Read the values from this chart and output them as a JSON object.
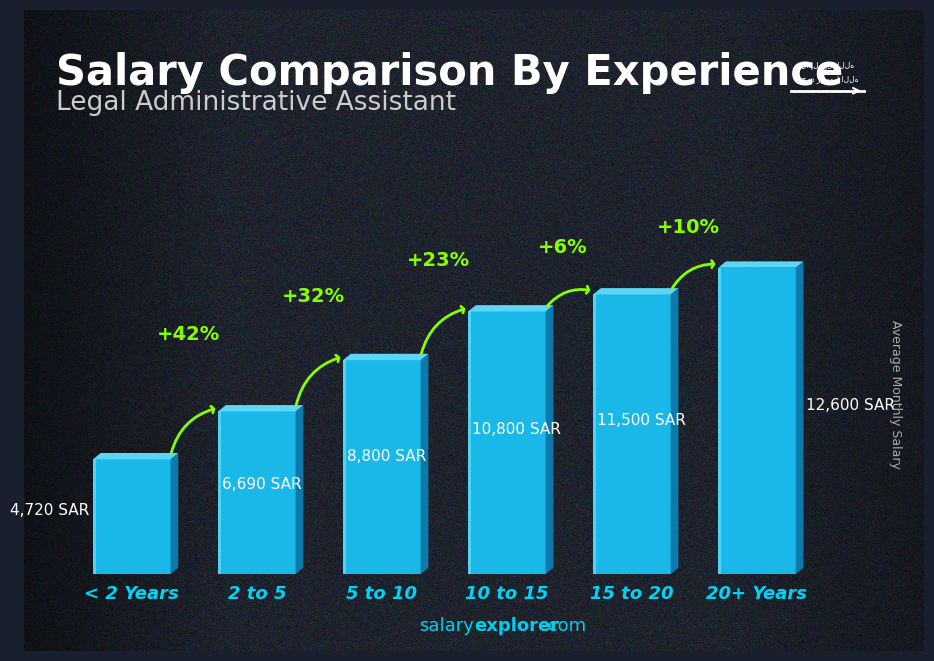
{
  "title": "Salary Comparison By Experience",
  "subtitle": "Legal Administrative Assistant",
  "categories": [
    "< 2 Years",
    "2 to 5",
    "5 to 10",
    "10 to 15",
    "15 to 20",
    "20+ Years"
  ],
  "values": [
    4720,
    6690,
    8800,
    10800,
    11500,
    12600
  ],
  "value_labels": [
    "4,720 SAR",
    "6,690 SAR",
    "8,800 SAR",
    "10,800 SAR",
    "11,500 SAR",
    "12,600 SAR"
  ],
  "pct_changes": [
    "+42%",
    "+32%",
    "+23%",
    "+6%",
    "+10%"
  ],
  "bar_color_face": "#1ab8e8",
  "bar_color_dark": "#0d7aab",
  "bar_color_darker": "#085a80",
  "bar_top_color": "#5dd6f5",
  "bg_dark": "#1a1f2e",
  "pct_color": "#88ff00",
  "value_color_white": "#ffffff",
  "value_color_light": "#e0e0e0",
  "axis_label": "Average Monthly Salary",
  "ylim_max": 14500,
  "bar_width": 0.62,
  "title_fontsize": 30,
  "subtitle_fontsize": 19,
  "cat_fontsize": 13,
  "val_fontsize": 11,
  "pct_fontsize": 14,
  "footer_salary_color": "#00cfee",
  "footer_explorer_color": "#00cfee",
  "flag_green": "#006c35"
}
